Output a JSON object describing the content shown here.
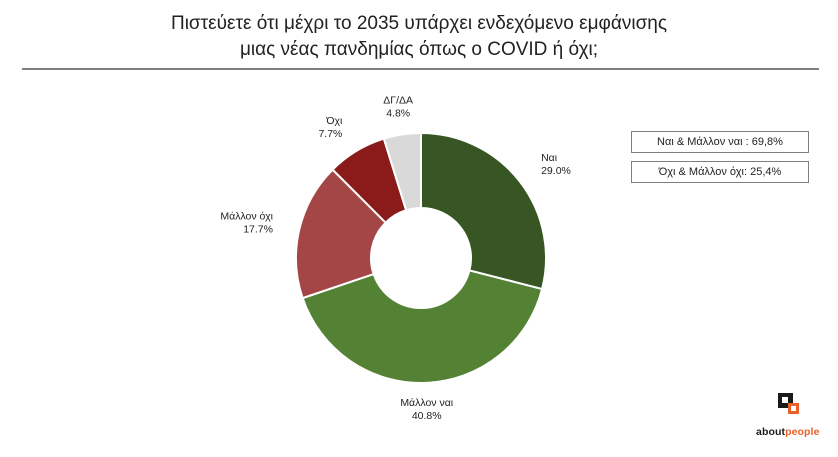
{
  "title": {
    "line1": "Πιστεύετε ότι μέχρι το 2035 υπάρχει ενδεχόμενο εμφάνισης",
    "line2": "μιας νέας πανδημίας όπως ο COVID ή όχι;"
  },
  "summary": {
    "yes_total": "Ναι & Μάλλον ναι : 69,8%",
    "no_total": "Όχι & Μάλλον όχι: 25,4%"
  },
  "logo": {
    "brand_about": "about",
    "brand_people": "people",
    "accent": "#e9602b"
  },
  "chart_data": {
    "type": "pie",
    "variant": "donut",
    "title": "",
    "start_angle_deg": 0,
    "direction": "clockwise",
    "slices": [
      {
        "name": "Ναι",
        "value": 29.0,
        "label": "29.0%",
        "color": "#375623"
      },
      {
        "name": "Μάλλον ναι",
        "value": 40.8,
        "label": "40.8%",
        "color": "#548235"
      },
      {
        "name": "Μάλλον όχι",
        "value": 17.7,
        "label": "17.7%",
        "color": "#a44646"
      },
      {
        "name": "Όχι",
        "value": 7.7,
        "label": "7.7%",
        "color": "#8b1a1a"
      },
      {
        "name": "ΔΓ/ΔΑ",
        "value": 4.8,
        "label": "4.8%",
        "color": "#d9d9d9"
      }
    ]
  }
}
